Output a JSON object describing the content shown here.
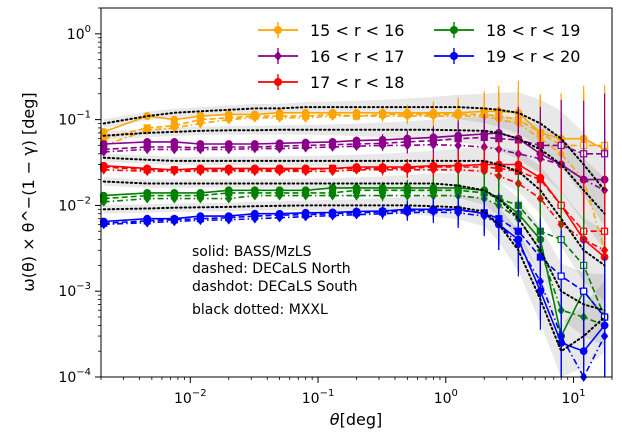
{
  "chart_data": {
    "type": "line",
    "xlabel_main": "θ",
    "xlabel_unit": "[deg]",
    "ylabel": "ω(θ) × θ^−(1 − γ) [deg]",
    "xscale": "log",
    "yscale": "log",
    "xlim": [
      0.002,
      20
    ],
    "ylim": [
      0.0001,
      2
    ],
    "x_ticks": [
      {
        "value": 0.01,
        "label": "10^-2"
      },
      {
        "value": 0.1,
        "label": "10^-1"
      },
      {
        "value": 1,
        "label": "10^0"
      },
      {
        "value": 10,
        "label": "10^1"
      }
    ],
    "y_ticks": [
      {
        "value": 0.0001,
        "label": "10^-4"
      },
      {
        "value": 0.001,
        "label": "10^-3"
      },
      {
        "value": 0.01,
        "label": "10^-2"
      },
      {
        "value": 0.1,
        "label": "10^-1"
      },
      {
        "value": 1,
        "label": "10^0"
      }
    ],
    "x": [
      0.0021,
      0.0046,
      0.0075,
      0.012,
      0.02,
      0.032,
      0.05,
      0.08,
      0.13,
      0.2,
      0.32,
      0.5,
      0.8,
      1.25,
      2.0,
      2.6,
      3.7,
      5.5,
      8.0,
      12.0,
      17.5
    ],
    "legend_position": "top-right",
    "legend": [
      "15 < r < 16",
      "16 < r < 17",
      "17 < r < 18",
      "18 < r < 19",
      "19 < r < 20"
    ],
    "series": [
      {
        "name": "15 < r < 16",
        "color": "#ffa500",
        "marker": "circle",
        "solid": [
          0.072,
          0.11,
          0.1,
          0.11,
          0.115,
          0.115,
          0.12,
          0.12,
          0.12,
          0.12,
          0.12,
          0.12,
          0.12,
          0.12,
          0.125,
          0.125,
          0.12,
          0.07,
          0.06,
          0.06,
          0.045
        ],
        "dashed": [
          0.06,
          0.08,
          0.085,
          0.1,
          0.105,
          0.11,
          0.11,
          0.11,
          0.115,
          0.11,
          0.115,
          0.115,
          0.115,
          0.115,
          0.115,
          0.11,
          0.1,
          0.07,
          0.05,
          0.05,
          0.05
        ],
        "dashdot": [
          0.05,
          0.075,
          0.08,
          0.09,
          0.1,
          0.105,
          0.105,
          0.105,
          0.11,
          0.11,
          0.11,
          0.11,
          0.11,
          0.11,
          0.11,
          0.1,
          0.09,
          0.06,
          0.04,
          0.02,
          0.003
        ]
      },
      {
        "name": "16 < r < 17",
        "color": "#8b008b",
        "marker": "diamond",
        "solid": [
          0.052,
          0.055,
          0.055,
          0.052,
          0.052,
          0.052,
          0.053,
          0.054,
          0.055,
          0.057,
          0.058,
          0.06,
          0.062,
          0.065,
          0.068,
          0.07,
          0.06,
          0.04,
          0.03,
          0.02,
          0.02
        ],
        "dashed": [
          0.045,
          0.048,
          0.048,
          0.047,
          0.048,
          0.048,
          0.049,
          0.05,
          0.051,
          0.052,
          0.053,
          0.055,
          0.057,
          0.06,
          0.062,
          0.06,
          0.058,
          0.05,
          0.05,
          0.04,
          0.04
        ],
        "dashdot": [
          0.042,
          0.045,
          0.045,
          0.045,
          0.045,
          0.046,
          0.046,
          0.047,
          0.048,
          0.049,
          0.05,
          0.05,
          0.051,
          0.05,
          0.048,
          0.045,
          0.04,
          0.035,
          0.03,
          0.02,
          0.015
        ]
      },
      {
        "name": "17 < r < 18",
        "color": "#ff0000",
        "marker": "circle",
        "solid": [
          0.029,
          0.027,
          0.026,
          0.027,
          0.027,
          0.027,
          0.027,
          0.027,
          0.027,
          0.028,
          0.028,
          0.028,
          0.029,
          0.029,
          0.03,
          0.03,
          0.03,
          0.021,
          0.01,
          0.004,
          0.0025
        ],
        "dashed": [
          0.028,
          0.026,
          0.026,
          0.026,
          0.026,
          0.026,
          0.026,
          0.026,
          0.027,
          0.027,
          0.027,
          0.027,
          0.028,
          0.028,
          0.028,
          0.027,
          0.025,
          0.02,
          0.01,
          0.005,
          0.005
        ],
        "dashdot": [
          0.026,
          0.025,
          0.025,
          0.025,
          0.025,
          0.025,
          0.025,
          0.025,
          0.025,
          0.026,
          0.026,
          0.026,
          0.026,
          0.026,
          0.025,
          0.022,
          0.018,
          0.012,
          0.006,
          0.004,
          0.003
        ]
      },
      {
        "name": "18 < r < 19",
        "color": "#008000",
        "marker": "circle",
        "solid": [
          0.013,
          0.014,
          0.014,
          0.014,
          0.015,
          0.015,
          0.015,
          0.015,
          0.016,
          0.016,
          0.016,
          0.016,
          0.016,
          0.016,
          0.015,
          0.012,
          0.008,
          0.004,
          0.0003,
          0.001,
          0.0005
        ],
        "dashed": [
          0.012,
          0.013,
          0.013,
          0.013,
          0.014,
          0.014,
          0.014,
          0.014,
          0.014,
          0.015,
          0.015,
          0.015,
          0.015,
          0.015,
          0.014,
          0.012,
          0.01,
          0.005,
          0.004,
          0.002,
          0.0005
        ],
        "dashdot": [
          0.011,
          0.012,
          0.012,
          0.012,
          0.012,
          0.013,
          0.013,
          0.013,
          0.013,
          0.013,
          0.013,
          0.013,
          0.013,
          0.013,
          0.012,
          0.01,
          0.007,
          0.003,
          0.0006,
          0.0005,
          0.0004
        ]
      },
      {
        "name": "19 < r < 20",
        "color": "#0000ff",
        "marker": "circle",
        "solid": [
          0.0065,
          0.007,
          0.007,
          0.0075,
          0.0075,
          0.008,
          0.008,
          0.0082,
          0.0083,
          0.0085,
          0.0086,
          0.009,
          0.009,
          0.009,
          0.008,
          0.006,
          0.004,
          0.001,
          0.00025,
          0.0002,
          0.0004
        ],
        "dashed": [
          0.0062,
          0.0066,
          0.0068,
          0.007,
          0.0072,
          0.0075,
          0.0077,
          0.0078,
          0.008,
          0.0082,
          0.0084,
          0.0086,
          0.0088,
          0.0088,
          0.0082,
          0.007,
          0.005,
          0.0025,
          0.0015,
          0.001,
          0.0005
        ],
        "dashdot": [
          0.006,
          0.0063,
          0.0065,
          0.0067,
          0.0068,
          0.007,
          0.0072,
          0.0074,
          0.0076,
          0.0078,
          0.008,
          0.0082,
          0.0084,
          0.0082,
          0.0075,
          0.006,
          0.0035,
          0.0013,
          0.0003,
          0.0001,
          0.0003
        ]
      }
    ],
    "mxxl_dotted": [
      [
        0.09,
        0.11,
        0.12,
        0.125,
        0.13,
        0.135,
        0.135,
        0.14,
        0.14,
        0.14,
        0.14,
        0.14,
        0.14,
        0.14,
        0.135,
        0.13,
        0.12,
        0.09,
        0.06,
        0.03,
        0.015
      ],
      [
        0.065,
        0.07,
        0.072,
        0.074,
        0.075,
        0.075,
        0.076,
        0.076,
        0.076,
        0.076,
        0.076,
        0.076,
        0.076,
        0.075,
        0.074,
        0.07,
        0.06,
        0.045,
        0.03,
        0.015,
        0.008
      ],
      [
        0.036,
        0.034,
        0.033,
        0.033,
        0.033,
        0.033,
        0.033,
        0.033,
        0.033,
        0.033,
        0.033,
        0.033,
        0.033,
        0.033,
        0.033,
        0.03,
        0.025,
        0.015,
        0.007,
        0.003,
        0.002
      ],
      [
        0.019,
        0.018,
        0.018,
        0.018,
        0.018,
        0.018,
        0.018,
        0.018,
        0.018,
        0.018,
        0.018,
        0.018,
        0.018,
        0.017,
        0.015,
        0.012,
        0.007,
        0.003,
        0.001,
        0.0007,
        0.0006
      ],
      [
        0.009,
        0.0092,
        0.0094,
        0.0095,
        0.0096,
        0.0098,
        0.0099,
        0.01,
        0.01,
        0.01,
        0.01,
        0.01,
        0.0098,
        0.0095,
        0.0085,
        0.006,
        0.003,
        0.0008,
        0.0002,
        0.0003,
        0.0005
      ]
    ],
    "annotations": [
      "solid: BASS/MzLS",
      "dashed: DECaLS North",
      "dashdot: DECaLS South",
      "black dotted: MXXL"
    ]
  }
}
